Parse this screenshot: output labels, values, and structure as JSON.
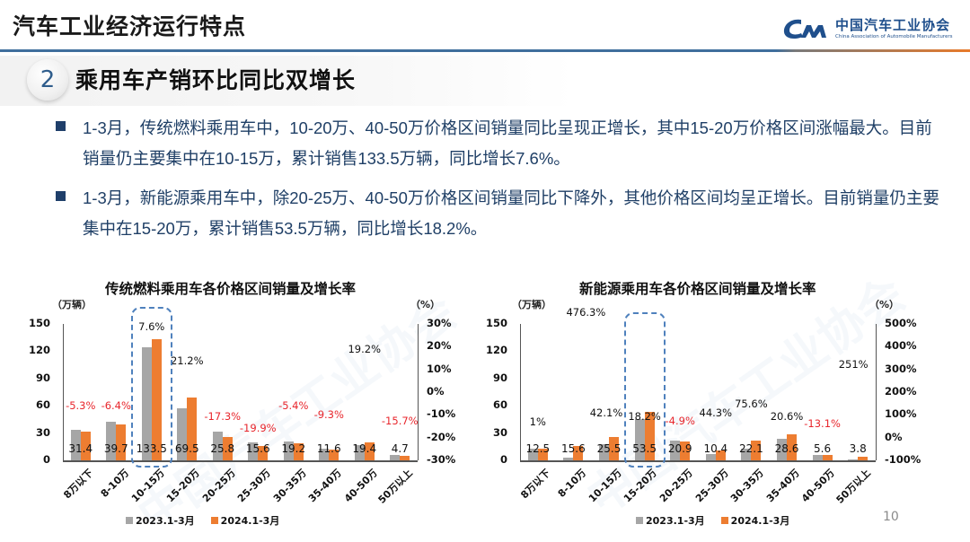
{
  "header": {
    "title": "汽车工业经济运行特点",
    "logo_cn": "中国汽车工业协会",
    "logo_en": "China Association of Automobile Manufacturers"
  },
  "section": {
    "number": "2",
    "title": "乘用车产销环比同比双增长"
  },
  "bullets": [
    {
      "text": "1-3月，传统燃料乘用车中，10-20万、40-50万价格区间销量同比呈现正增长，其中15-20万价格区间涨幅最大。目前销量仍主要集中在10-15万，累计销售133.5万辆，同比增长7.6%。"
    },
    {
      "text": "1-3月，新能源乘用车中，除20-25万、40-50万价格区间销量同比下降外，其他价格区间均呈正增长。目前销量仍主要集中在15-20万，累计销售53.5万辆，同比增长18.2%。"
    }
  ],
  "page_number": "10",
  "colors": {
    "series_2023": "#a6a6a6",
    "series_2024": "#ed7d31",
    "negative_pct": "#e8262c",
    "highlight_box": "#4f81bd",
    "bullet_text": "#1f3f66",
    "header_rule": "#3f6e9c"
  },
  "charts": {
    "ice": {
      "title": "传统燃料乘用车各价格区间销量及增长率",
      "left_unit": "（万辆）",
      "right_unit": "（%）",
      "left_ticks": [
        "150",
        "120",
        "90",
        "60",
        "30",
        "0"
      ],
      "right_ticks": [
        "30%",
        "20%",
        "10%",
        "0%",
        "-10%",
        "-20%",
        "-30%"
      ],
      "legend": [
        "2023.1-3月",
        "2024.1-3月"
      ]
    },
    "nev": {
      "title": "新能源乘用车各价格区间销量及增长率",
      "left_unit": "（万辆）",
      "right_unit": "（%）",
      "left_ticks": [
        "150",
        "120",
        "90",
        "60",
        "30",
        "0"
      ],
      "right_ticks": [
        "500%",
        "400%",
        "300%",
        "200%",
        "100%",
        "0%",
        "-100%"
      ],
      "legend": [
        "2023.1-3月",
        "2024.1-3月"
      ]
    }
  },
  "chart_data": [
    {
      "type": "bar",
      "title": "传统燃料乘用车各价格区间销量及增长率",
      "xlabel": "",
      "ylabel": "（万辆）",
      "y2label": "（%）",
      "ylim": [
        0,
        150
      ],
      "y2lim": [
        -30,
        30
      ],
      "categories": [
        "8万以下",
        "8-10万",
        "10-15万",
        "15-20万",
        "20-25万",
        "25-30万",
        "30-35万",
        "35-40万",
        "40-50万",
        "50万以上"
      ],
      "series": [
        {
          "name": "2023.1-3月",
          "values": [
            33.2,
            42.4,
            124.1,
            57.3,
            31.2,
            19.5,
            20.3,
            12.8,
            16.3,
            5.6
          ]
        },
        {
          "name": "2024.1-3月",
          "values": [
            31.4,
            39.7,
            133.5,
            69.5,
            25.8,
            15.6,
            19.2,
            11.6,
            19.4,
            4.7
          ]
        }
      ],
      "growth_rate_labels": [
        "-5.3%",
        "-6.4%",
        "7.6%",
        "21.2%",
        "-17.3%",
        "-19.9%",
        "-5.4%",
        "-9.3%",
        "19.2%",
        "-15.7%"
      ],
      "growth_rate": [
        -5.3,
        -6.4,
        7.6,
        21.2,
        -17.3,
        -19.9,
        -5.4,
        -9.3,
        19.2,
        -15.7
      ],
      "highlight_category": "10-15万",
      "legend_position": "bottom",
      "grid": false
    },
    {
      "type": "bar",
      "title": "新能源乘用车各价格区间销量及增长率",
      "xlabel": "",
      "ylabel": "（万辆）",
      "y2label": "（%）",
      "ylim": [
        0,
        150
      ],
      "y2lim": [
        -100,
        500
      ],
      "categories": [
        "8万以下",
        "8-10万",
        "10-15万",
        "15-20万",
        "20-25万",
        "25-30万",
        "30-35万",
        "35-40万",
        "40-50万",
        "50万以上"
      ],
      "series": [
        {
          "name": "2023.1-3月",
          "values": [
            12.4,
            2.7,
            17.9,
            45.3,
            22.0,
            7.2,
            12.6,
            23.7,
            6.4,
            1.1
          ]
        },
        {
          "name": "2024.1-3月",
          "values": [
            12.5,
            15.6,
            25.5,
            53.5,
            20.9,
            10.4,
            22.1,
            28.6,
            5.6,
            3.8
          ]
        }
      ],
      "growth_rate_labels": [
        "1%",
        "476.3%",
        "42.1%",
        "18.2%",
        "-4.9%",
        "44.3%",
        "75.6%",
        "20.6%",
        "-13.1%",
        "251%"
      ],
      "growth_rate": [
        1,
        476.3,
        42.1,
        18.2,
        -4.9,
        44.3,
        75.6,
        20.6,
        -13.1,
        251
      ],
      "highlight_category": "15-20万",
      "legend_position": "bottom",
      "grid": false
    }
  ]
}
